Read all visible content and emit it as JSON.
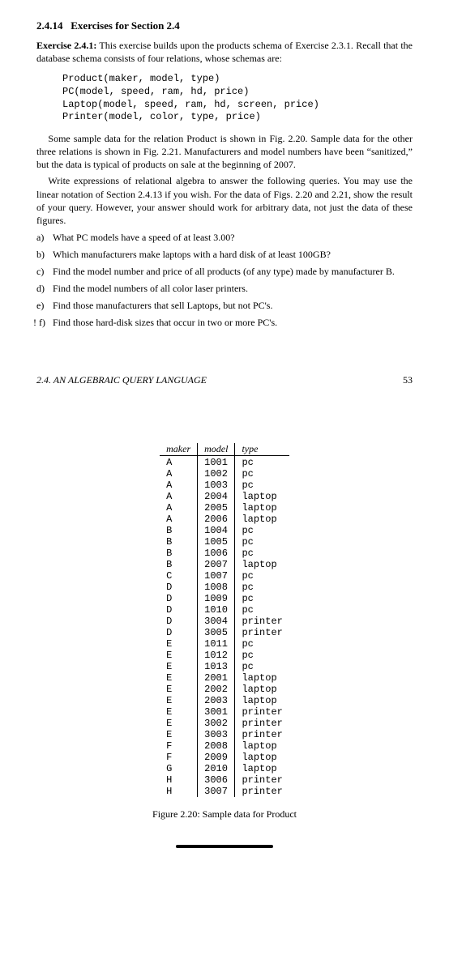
{
  "section": {
    "heading_num": "2.4.14",
    "heading_title": "Exercises for Section 2.4",
    "exercise_label": "Exercise 2.4.1:",
    "intro": "This exercise builds upon the products schema of Exercise 2.3.1. Recall that the database schema consists of four relations, whose schemas are:",
    "schema": "Product(maker, model, type)\nPC(model, speed, ram, hd, price)\nLaptop(model, speed, ram, hd, screen, price)\nPrinter(model, color, type, price)",
    "para1": "Some sample data for the relation Product is shown in Fig. 2.20. Sample data for the other three relations is shown in Fig. 2.21. Manufacturers and model numbers have been “sanitized,” but the data is typical of products on sale at the beginning of 2007.",
    "para2": "Write expressions of relational algebra to answer the following queries. You may use the linear notation of Section 2.4.13 if you wish. For the data of Figs. 2.20 and 2.21, show the result of your query. However, your answer should work for arbitrary data, not just the data of these figures.",
    "questions": [
      {
        "label": "a)",
        "text": "What PC models have a speed of at least 3.00?"
      },
      {
        "label": "b)",
        "text": "Which manufacturers make laptops with a hard disk of at least 100GB?"
      },
      {
        "label": "c)",
        "text": "Find the model number and price of all products (of any type) made by manufacturer B."
      },
      {
        "label": "d)",
        "text": "Find the model numbers of all color laser printers."
      },
      {
        "label": "e)",
        "text": "Find those manufacturers that sell Laptops, but not PC's."
      },
      {
        "label": "! f)",
        "text": "Find those hard-disk sizes that occur in two or more PC's."
      }
    ]
  },
  "page2": {
    "running_head": "2.4.  AN ALGEBRAIC QUERY LANGUAGE",
    "page_number": "53",
    "table": {
      "columns": [
        "maker",
        "model",
        "type"
      ],
      "rows": [
        [
          "A",
          "1001",
          "pc"
        ],
        [
          "A",
          "1002",
          "pc"
        ],
        [
          "A",
          "1003",
          "pc"
        ],
        [
          "A",
          "2004",
          "laptop"
        ],
        [
          "A",
          "2005",
          "laptop"
        ],
        [
          "A",
          "2006",
          "laptop"
        ],
        [
          "B",
          "1004",
          "pc"
        ],
        [
          "B",
          "1005",
          "pc"
        ],
        [
          "B",
          "1006",
          "pc"
        ],
        [
          "B",
          "2007",
          "laptop"
        ],
        [
          "C",
          "1007",
          "pc"
        ],
        [
          "D",
          "1008",
          "pc"
        ],
        [
          "D",
          "1009",
          "pc"
        ],
        [
          "D",
          "1010",
          "pc"
        ],
        [
          "D",
          "3004",
          "printer"
        ],
        [
          "D",
          "3005",
          "printer"
        ],
        [
          "E",
          "1011",
          "pc"
        ],
        [
          "E",
          "1012",
          "pc"
        ],
        [
          "E",
          "1013",
          "pc"
        ],
        [
          "E",
          "2001",
          "laptop"
        ],
        [
          "E",
          "2002",
          "laptop"
        ],
        [
          "E",
          "2003",
          "laptop"
        ],
        [
          "E",
          "3001",
          "printer"
        ],
        [
          "E",
          "3002",
          "printer"
        ],
        [
          "E",
          "3003",
          "printer"
        ],
        [
          "F",
          "2008",
          "laptop"
        ],
        [
          "F",
          "2009",
          "laptop"
        ],
        [
          "G",
          "2010",
          "laptop"
        ],
        [
          "H",
          "3006",
          "printer"
        ],
        [
          "H",
          "3007",
          "printer"
        ]
      ]
    },
    "caption": "Figure 2.20: Sample data for Product"
  }
}
